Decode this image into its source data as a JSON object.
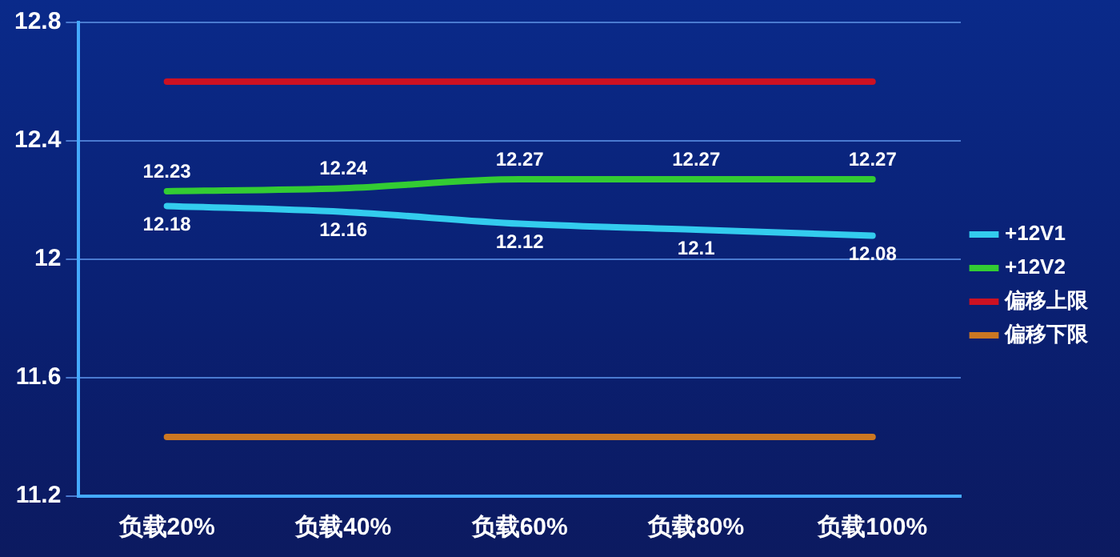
{
  "chart_data": {
    "type": "line",
    "categories": [
      "负载20%",
      "负载40%",
      "负载60%",
      "负载80%",
      "负载100%"
    ],
    "series": [
      {
        "name": "+12V1",
        "color": "#33ccee",
        "values": [
          12.18,
          12.16,
          12.12,
          12.1,
          12.08
        ],
        "value_labels": [
          "12.18",
          "12.16",
          "12.12",
          "12.1",
          "12.08"
        ]
      },
      {
        "name": "+12V2",
        "color": "#33cc33",
        "values": [
          12.23,
          12.24,
          12.27,
          12.27,
          12.27
        ],
        "value_labels": [
          "12.23",
          "12.24",
          "12.27",
          "12.27",
          "12.27"
        ]
      },
      {
        "name": "偏移上限",
        "color": "#cc1122",
        "values": [
          12.6,
          12.6,
          12.6,
          12.6,
          12.6
        ]
      },
      {
        "name": "偏移下限",
        "color": "#cc7722",
        "values": [
          11.4,
          11.4,
          11.4,
          11.4,
          11.4
        ]
      }
    ],
    "ylim": [
      11.2,
      12.8
    ],
    "yticks": [
      11.2,
      11.6,
      12,
      12.4,
      12.8
    ],
    "grid": "y",
    "legend": "right",
    "marker": "none",
    "line_style": "solid"
  }
}
